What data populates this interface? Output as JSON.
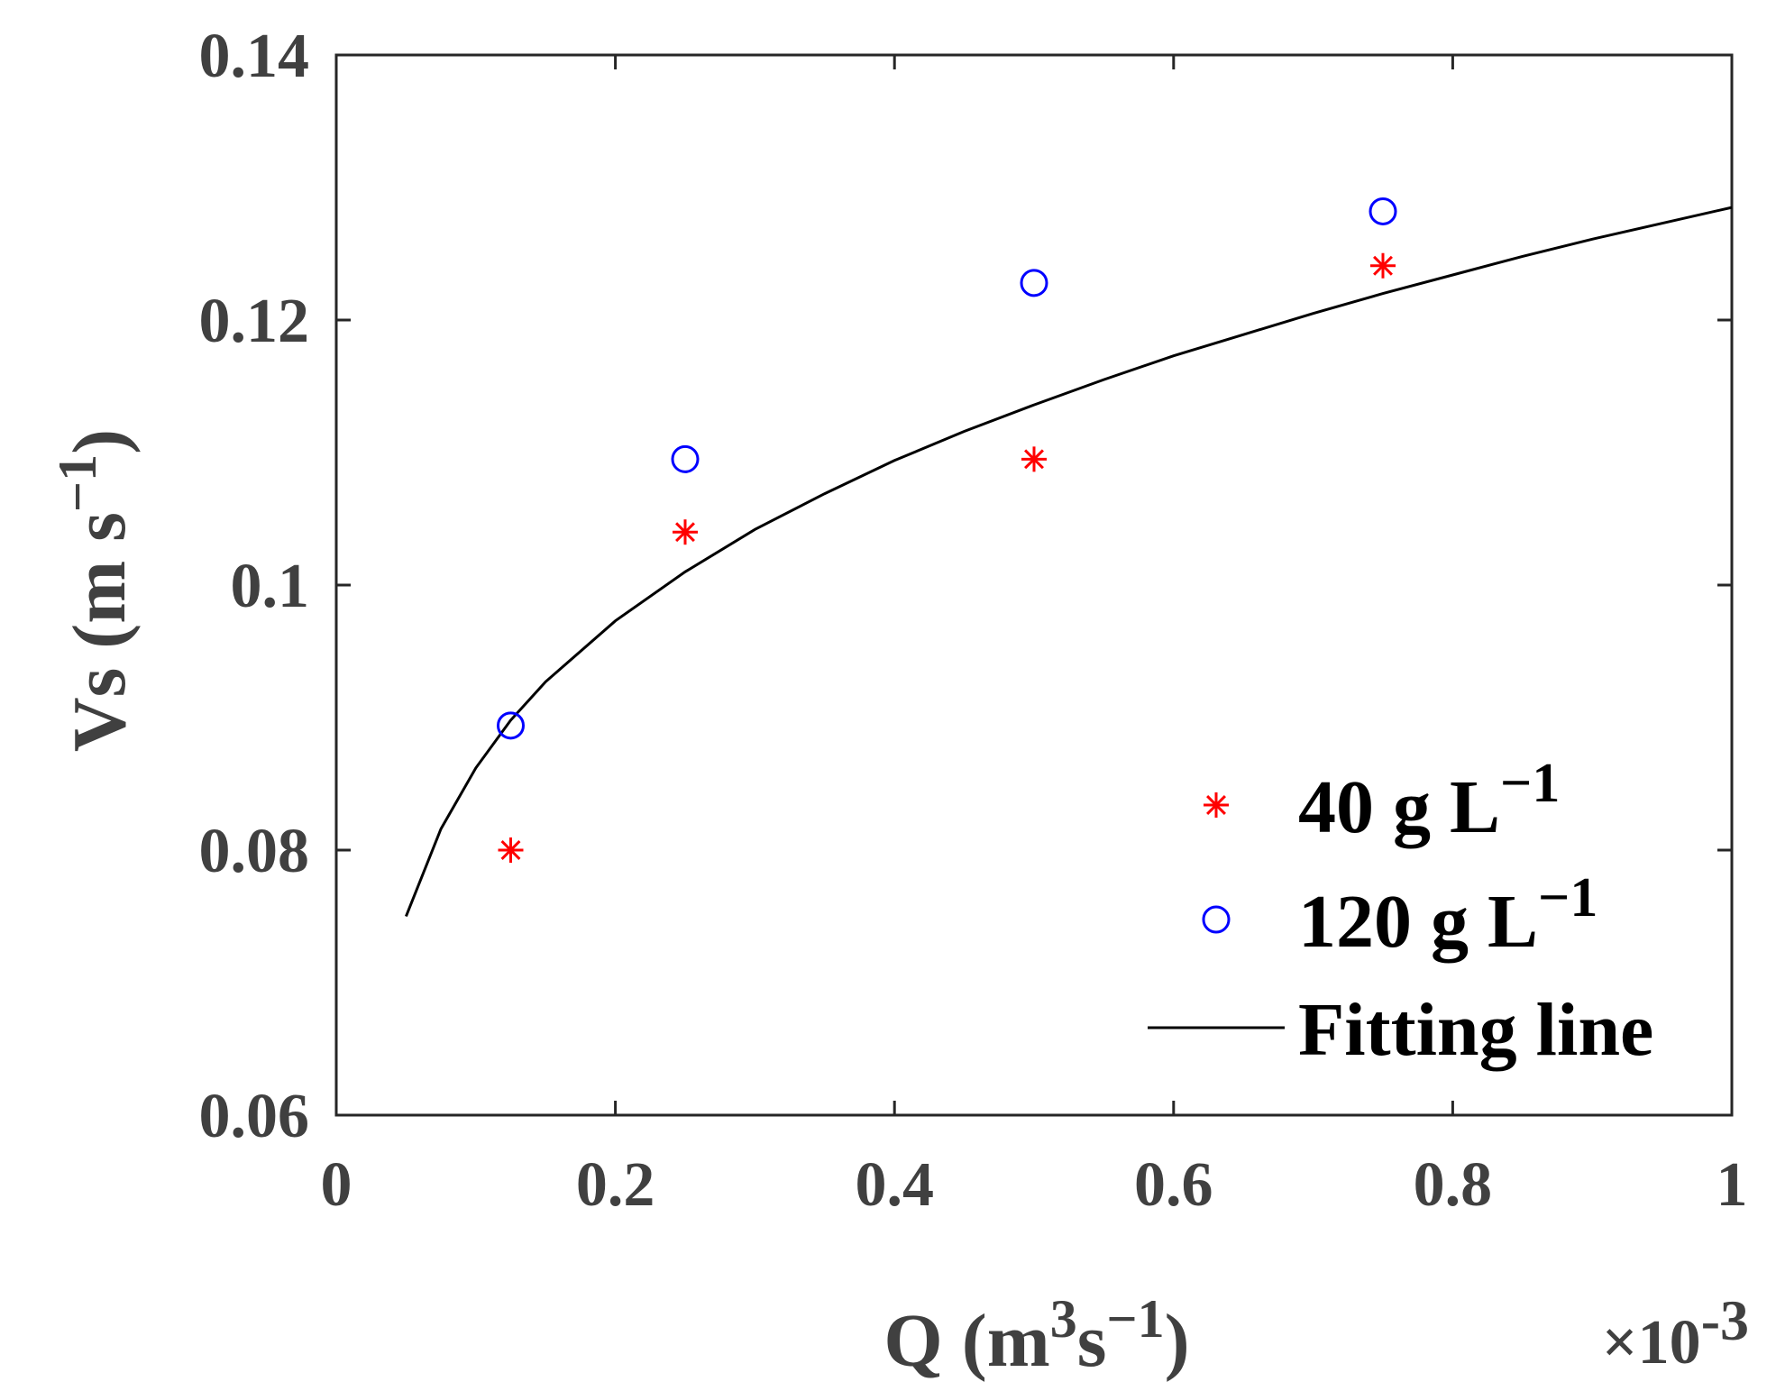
{
  "chart_data": {
    "type": "scatter",
    "title": "",
    "xlabel": {
      "base": "Q (m",
      "sup1": "3",
      "mid": "s",
      "sup2": "−1",
      "end": ")"
    },
    "ylabel": {
      "base": "Vs (m s",
      "sup": "−1",
      "end": ")"
    },
    "x_multiplier": {
      "base": "×10",
      "exp": "-3"
    },
    "xlim": [
      0,
      1
    ],
    "ylim": [
      0.06,
      0.14
    ],
    "xticks": [
      0,
      0.2,
      0.4,
      0.6,
      0.8,
      1
    ],
    "xtick_labels": [
      "0",
      "0.2",
      "0.4",
      "0.6",
      "0.8",
      "1"
    ],
    "yticks": [
      0.06,
      0.08,
      0.1,
      0.12,
      0.14
    ],
    "ytick_labels": [
      "0.06",
      "0.08",
      "0.1",
      "0.12",
      "0.14"
    ],
    "grid": false,
    "legend_position": "bottom-right",
    "series": [
      {
        "name": "40 g L−1",
        "legend_base": "40 g L",
        "legend_sup": "−1",
        "marker": "asterisk",
        "color": "#ff0000",
        "x": [
          0.125,
          0.25,
          0.5,
          0.75
        ],
        "y": [
          0.08,
          0.104,
          0.1095,
          0.1241
        ]
      },
      {
        "name": "120 g L−1",
        "legend_base": "120 g L",
        "legend_sup": "−1",
        "marker": "circle",
        "color": "#0000ff",
        "x": [
          0.125,
          0.25,
          0.5,
          0.75
        ],
        "y": [
          0.0894,
          0.1095,
          0.1228,
          0.1282
        ]
      },
      {
        "name": "Fitting line",
        "legend_base": "Fitting line",
        "legend_sup": "",
        "marker": "line",
        "color": "#000000",
        "x": [
          0.05,
          0.075,
          0.1,
          0.125,
          0.15,
          0.2,
          0.25,
          0.3,
          0.35,
          0.4,
          0.45,
          0.5,
          0.55,
          0.6,
          0.65,
          0.7,
          0.75,
          0.8,
          0.85,
          0.9,
          0.95,
          1.0
        ],
        "y": [
          0.075,
          0.0816,
          0.0862,
          0.0898,
          0.0927,
          0.0973,
          0.101,
          0.1042,
          0.1069,
          0.1094,
          0.1116,
          0.1136,
          0.1155,
          0.1173,
          0.1189,
          0.1205,
          0.122,
          0.1234,
          0.1248,
          0.1261,
          0.1273,
          0.1285
        ]
      }
    ]
  }
}
